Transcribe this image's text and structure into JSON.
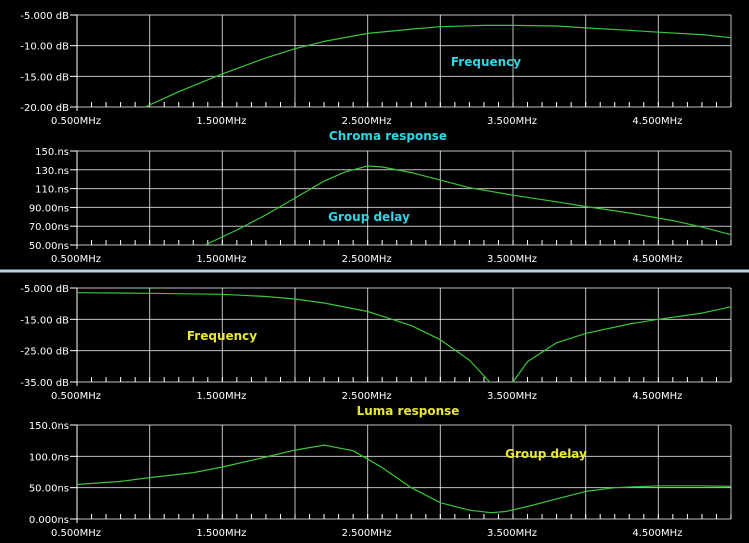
{
  "colors": {
    "background": "#000000",
    "grid": "#ffffff",
    "axis": "#ffffff",
    "trace": "#39c639",
    "chroma_label": "#2fd6e6",
    "luma_label": "#e8e832",
    "divider": "#b9d2e6"
  },
  "chart_data": [
    {
      "id": "chroma-frequency",
      "type": "line",
      "title": "",
      "annotation": "Frequency",
      "annotation_color": "chroma",
      "xlabel": "",
      "ylabel": "",
      "xlim": [
        0.5,
        5.0
      ],
      "ylim": [
        -20,
        -5
      ],
      "grid": true,
      "x_ticks": [
        "0.500MHz",
        "1.500MHz",
        "2.500MHz",
        "3.500MHz",
        "4.500MHz"
      ],
      "y_ticks": [
        "-5.000 dB",
        "-10.00 dB",
        "-15.00 dB",
        "-20.00 dB"
      ],
      "series": [
        {
          "x": [
            0.97,
            1.2,
            1.5,
            1.8,
            2.0,
            2.2,
            2.5,
            2.8,
            3.0,
            3.3,
            3.5,
            3.8,
            4.0,
            4.3,
            4.5,
            4.8,
            5.0
          ],
          "values": [
            -20.0,
            -17.5,
            -14.6,
            -12.0,
            -10.5,
            -9.3,
            -8.0,
            -7.3,
            -6.9,
            -6.7,
            -6.7,
            -6.8,
            -7.1,
            -7.5,
            -7.8,
            -8.2,
            -8.7
          ]
        }
      ]
    },
    {
      "id": "chroma-group-delay",
      "type": "line",
      "title": "Chroma response",
      "title_color": "chroma",
      "annotation": "Group delay",
      "annotation_color": "chroma",
      "xlabel": "",
      "ylabel": "",
      "xlim": [
        0.5,
        5.0
      ],
      "ylim": [
        50,
        150
      ],
      "grid": true,
      "x_ticks": [
        "0.500MHz",
        "1.500MHz",
        "2.500MHz",
        "3.500MHz",
        "4.500MHz"
      ],
      "y_ticks": [
        "150.ns",
        "130.ns",
        "110.ns",
        "90.00ns",
        "70.00ns",
        "50.00ns"
      ],
      "series": [
        {
          "x": [
            1.38,
            1.6,
            1.8,
            2.0,
            2.2,
            2.35,
            2.5,
            2.6,
            2.8,
            3.0,
            3.2,
            3.5,
            3.8,
            4.0,
            4.3,
            4.6,
            4.8,
            5.0
          ],
          "values": [
            50,
            66,
            82,
            100,
            118,
            128,
            134,
            133,
            127,
            119,
            111,
            103,
            96,
            91,
            84,
            76,
            69,
            61
          ]
        }
      ]
    },
    {
      "id": "luma-frequency",
      "type": "line",
      "title": "",
      "annotation": "Frequency",
      "annotation_color": "luma",
      "xlabel": "",
      "ylabel": "",
      "xlim": [
        0.5,
        5.0
      ],
      "ylim": [
        -35,
        -5
      ],
      "grid": true,
      "x_ticks": [
        "0.500MHz",
        "1.500MHz",
        "2.500MHz",
        "3.500MHz",
        "4.500MHz"
      ],
      "y_ticks": [
        "-5.000 dB",
        "-15.00 dB",
        "-25.00 dB",
        "-35.00 dB"
      ],
      "series": [
        {
          "x": [
            0.5,
            1.0,
            1.5,
            1.8,
            2.0,
            2.2,
            2.5,
            2.8,
            3.0,
            3.2,
            3.34
          ],
          "values": [
            -6.5,
            -6.7,
            -7.0,
            -7.7,
            -8.5,
            -9.8,
            -12.5,
            -17.0,
            -21.5,
            -28.0,
            -35.0
          ]
        },
        {
          "x": [
            3.5,
            3.6,
            3.8,
            4.0,
            4.3,
            4.5,
            4.8,
            5.0
          ],
          "values": [
            -35.0,
            -28.5,
            -22.5,
            -19.5,
            -16.5,
            -15.0,
            -13.0,
            -11.0
          ]
        }
      ]
    },
    {
      "id": "luma-group-delay",
      "type": "line",
      "title": "Luma response",
      "title_color": "luma",
      "annotation": "Group delay",
      "annotation_color": "luma",
      "xlabel": "",
      "ylabel": "",
      "xlim": [
        0.5,
        5.0
      ],
      "ylim": [
        0,
        150
      ],
      "grid": true,
      "x_ticks": [
        "0.500MHz",
        "1.500MHz",
        "2.500MHz",
        "3.500MHz",
        "4.500MHz"
      ],
      "y_ticks": [
        "150.0ns",
        "100.0ns",
        "50.00ns",
        "0.000ns"
      ],
      "series": [
        {
          "x": [
            0.5,
            0.8,
            1.0,
            1.3,
            1.5,
            1.8,
            2.0,
            2.2,
            2.4,
            2.6,
            2.8,
            3.0,
            3.2,
            3.35,
            3.45,
            3.6,
            3.8,
            4.0,
            4.2,
            4.5,
            4.8,
            5.0
          ],
          "values": [
            55,
            60,
            66,
            74,
            83,
            99,
            110,
            118,
            109,
            82,
            50,
            26,
            14,
            10,
            12,
            20,
            32,
            44,
            50,
            53,
            53,
            52
          ]
        }
      ]
    }
  ]
}
